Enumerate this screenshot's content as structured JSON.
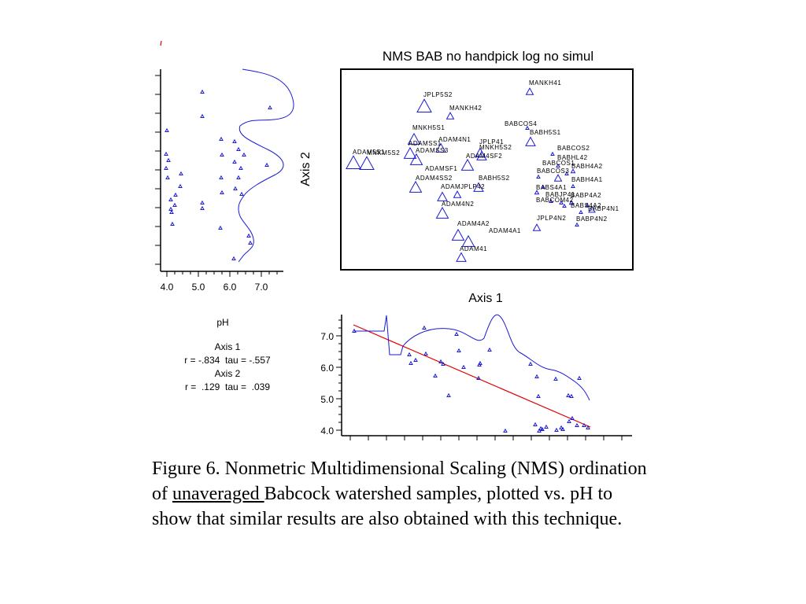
{
  "nms": {
    "title": "NMS BAB no handpick log no simul",
    "xlabel": "Axis 1",
    "ylabel": "Axis 2",
    "sample_labels": [
      "MANKH41",
      "JPLP5S2",
      "MANKH42",
      "BABCOS4",
      "MNKH5S1",
      "BABH5S1",
      "ADAM4N1",
      "ADAMSS1",
      "JPLP41",
      "MNKH5S2",
      "BABCOS2",
      "ADAM5S1",
      "MNKM5S2",
      "ADAMSS3",
      "ADAM4SF2",
      "BABHL42",
      "BABCOS1",
      "BABH4A2",
      "ADAMSF1",
      "BABCOS3",
      "BABH4A1",
      "ADAM4SS2",
      "BABH5S2",
      "ADAM4N2",
      "BABS4A1",
      "ADAMJPLP42",
      "BABJP41",
      "BABP4A2",
      "BABCOM42",
      "BABS4A2",
      "BABP4N1",
      "JPLP4N2",
      "BABP4N2",
      "ADAM4A2",
      "ADAM4A1",
      "ADAM41"
    ]
  },
  "ph_panel": {
    "xticks": [
      "4.0",
      "5.0",
      "6.0",
      "7.0"
    ],
    "xlabel": "pH"
  },
  "bottom_panel": {
    "yticks": [
      "7.0",
      "6.0",
      "5.0",
      "4.0"
    ]
  },
  "stats": {
    "axis1_label": "Axis 1",
    "axis1_values": "r = -.834  tau = -.557",
    "axis2_label": "Axis 2",
    "axis2_values": "r =  .129  tau =  .039"
  },
  "caption": {
    "part1": "Figure 6. Nonmetric Multidimensional Scaling (NMS) ordination of ",
    "underlined": "unaveraged ",
    "part2": "Babcock watershed samples, plotted vs. pH to show that similar results are also obtained with this technique."
  },
  "colors": {
    "points": "#1a1ad6",
    "fit_line": "#e00000",
    "axes": "#000000"
  },
  "chart_data": [
    {
      "type": "scatter",
      "title": "NMS BAB no handpick log no simul",
      "xlabel": "Axis 1",
      "ylabel": "Axis 2",
      "grid": false
    },
    {
      "type": "scatter",
      "xlabel": "pH",
      "xticks": [
        4.0,
        5.0,
        6.0,
        7.0
      ],
      "grid": false
    },
    {
      "type": "scatter",
      "yticks": [
        4.0,
        5.0,
        6.0,
        7.0
      ],
      "ylim": [
        4.0,
        7.0
      ],
      "grid": false
    }
  ]
}
